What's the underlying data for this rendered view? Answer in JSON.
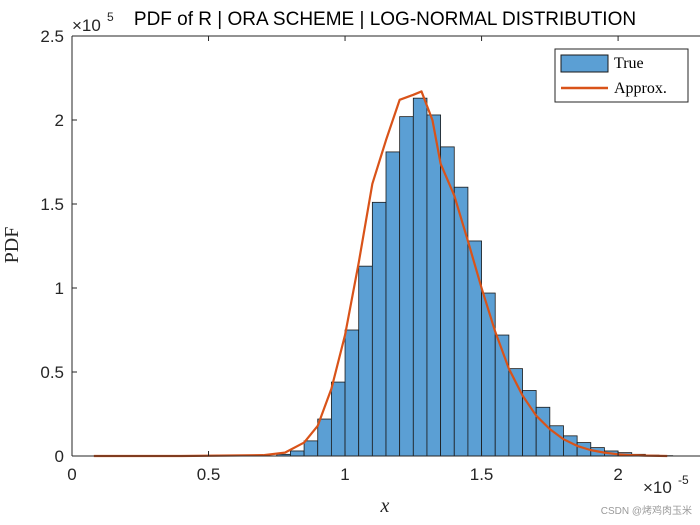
{
  "watermark": "CSDN @烤鸡肉玉米",
  "chart_data": {
    "type": "bar",
    "title": "PDF of R | ORA SCHEME | LOG-NORMAL DISTRIBUTION",
    "xlabel": "x",
    "ylabel": "PDF",
    "x_exponent_base": "×10",
    "x_exponent_power": "-5",
    "y_exponent_base": "×10",
    "y_exponent_power": "5",
    "xlim": [
      0,
      2.3
    ],
    "ylim": [
      0,
      2.5
    ],
    "xticks": [
      0,
      0.5,
      1,
      1.5,
      2
    ],
    "xtick_labels": [
      "0",
      "0.5",
      "1",
      "1.5",
      "2"
    ],
    "yticks": [
      0,
      0.5,
      1,
      1.5,
      2,
      2.5
    ],
    "ytick_labels": [
      "0",
      "0.5",
      "1",
      "1.5",
      "2",
      "2.5"
    ],
    "legend": {
      "position": "top-right",
      "entries": [
        "True",
        "Approx."
      ]
    },
    "histogram": {
      "name": "True",
      "color": "#5b9fd4",
      "edge_color": "#1a1a1a",
      "bin_width": 0.05,
      "bin_starts": [
        0.75,
        0.8,
        0.85,
        0.9,
        0.95,
        1.0,
        1.05,
        1.1,
        1.15,
        1.2,
        1.25,
        1.3,
        1.35,
        1.4,
        1.45,
        1.5,
        1.55,
        1.6,
        1.65,
        1.7,
        1.75,
        1.8,
        1.85,
        1.9,
        1.95,
        2.0,
        2.05,
        2.1,
        2.15
      ],
      "values": [
        0.01,
        0.03,
        0.09,
        0.22,
        0.44,
        0.75,
        1.13,
        1.51,
        1.81,
        2.02,
        2.13,
        2.03,
        1.84,
        1.6,
        1.28,
        0.97,
        0.72,
        0.52,
        0.39,
        0.29,
        0.18,
        0.12,
        0.08,
        0.05,
        0.03,
        0.02,
        0.01,
        0.005,
        0.002
      ]
    },
    "series": [
      {
        "name": "Approx.",
        "color": "#d95319",
        "x": [
          0.08,
          0.4,
          0.7,
          0.78,
          0.85,
          0.9,
          0.95,
          1.0,
          1.05,
          1.1,
          1.15,
          1.2,
          1.25,
          1.28,
          1.32,
          1.35,
          1.4,
          1.45,
          1.5,
          1.55,
          1.6,
          1.65,
          1.7,
          1.75,
          1.8,
          1.85,
          1.9,
          1.95,
          2.0,
          2.05,
          2.1,
          2.18
        ],
        "values": [
          0,
          0,
          0.005,
          0.02,
          0.08,
          0.18,
          0.4,
          0.72,
          1.15,
          1.62,
          1.88,
          2.12,
          2.15,
          2.17,
          2.0,
          1.74,
          1.55,
          1.28,
          1.0,
          0.74,
          0.52,
          0.36,
          0.24,
          0.16,
          0.1,
          0.06,
          0.035,
          0.02,
          0.01,
          0.005,
          0.002,
          0.0
        ]
      }
    ]
  }
}
